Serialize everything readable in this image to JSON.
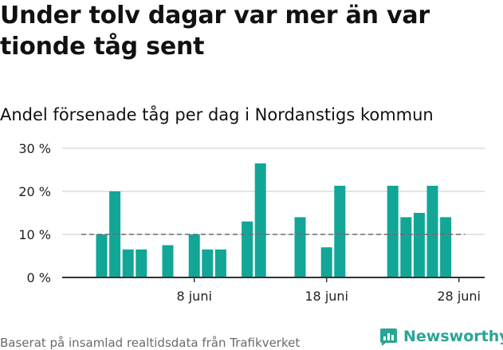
{
  "headline": {
    "line1": "Under tolv dagar var mer än var",
    "line2": "tionde tåg sent"
  },
  "chart_data": {
    "type": "bar",
    "title": "Andel försenade tåg per dag i Nordanstigs kommun",
    "xlabel": "",
    "ylabel": "",
    "x": [
      1,
      2,
      3,
      4,
      5,
      6,
      7,
      8,
      9,
      10,
      11,
      12,
      13,
      14,
      15,
      16,
      17,
      18,
      19,
      20,
      21,
      22,
      23,
      24,
      25,
      26,
      27,
      28,
      29,
      30
    ],
    "values": [
      10,
      20,
      6.5,
      6.5,
      null,
      7.5,
      null,
      10,
      6.5,
      6.5,
      null,
      13,
      26.5,
      null,
      null,
      14,
      null,
      7,
      21.3,
      null,
      null,
      null,
      21.3,
      14,
      15,
      21.3,
      14,
      null,
      null,
      null
    ],
    "ylim": [
      0,
      30
    ],
    "yticks": [
      0,
      10,
      20,
      30
    ],
    "yticklabels": [
      "0 %",
      "10 %",
      "20 %",
      "30 %"
    ],
    "xticks": [
      8,
      18,
      28
    ],
    "xticklabels": [
      "8 juni",
      "18 juni",
      "28 juni"
    ],
    "reference_line": 10,
    "grid": true,
    "colors": {
      "bar": "#12a697",
      "grid": "#dcdcdc",
      "axis": "#333333",
      "reference": "#6e6e6e"
    }
  },
  "footer": {
    "source": "Baserat på insamlad realtidsdata från Trafikverket",
    "brand": "Newsworthy",
    "brand_icon": "newsworthy-logo-icon",
    "brand_color": "#2aa595"
  }
}
